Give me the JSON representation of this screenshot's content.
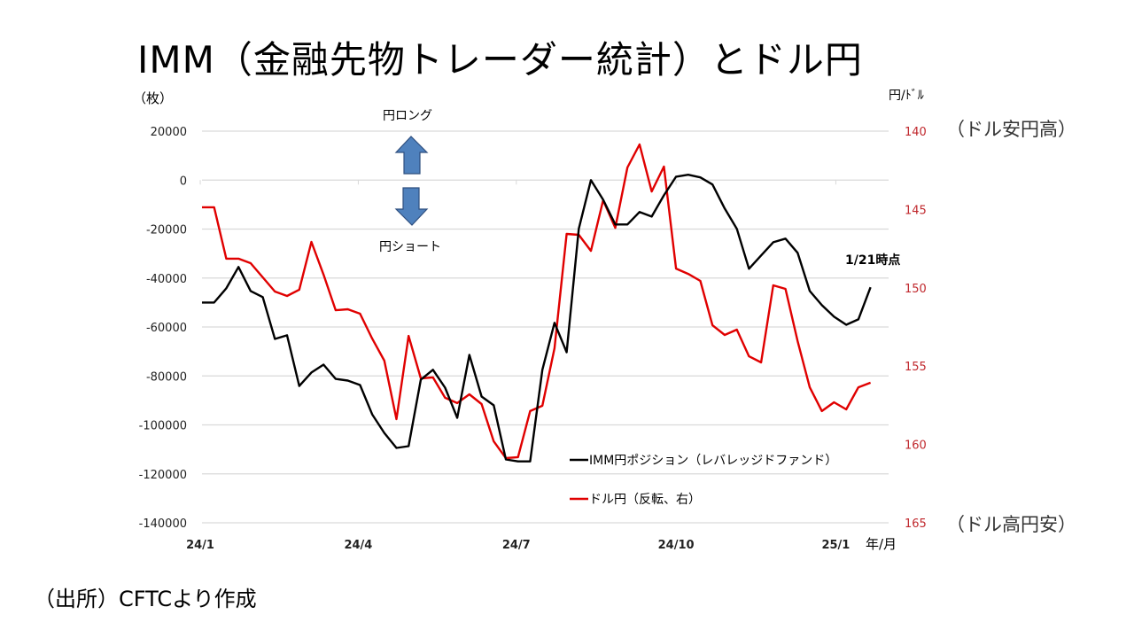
{
  "title": "IMM（金融先物トレーダー統計）とドル円",
  "source": "（出所）CFTCより作成",
  "chart_data": {
    "type": "line",
    "title": "IMM（金融先物トレーダー統計）とドル円",
    "y_left_label": "（枚）",
    "y_right_label": "円/ﾄﾞﾙ",
    "x_label": "年/月",
    "ylim_left": [
      -140000,
      20000
    ],
    "ylim_right": [
      165,
      140
    ],
    "right_axis_inverted": true,
    "grid": true,
    "legend_placement": "bottom-right",
    "y_left_ticks": [
      "20000",
      "0",
      "-20000",
      "-40000",
      "-60000",
      "-80000",
      "-100000",
      "-120000",
      "-140000"
    ],
    "y_right_ticks": [
      "140",
      "145",
      "150",
      "155",
      "160",
      "165"
    ],
    "x_ticks": [
      {
        "date": "2024-01-01",
        "label": "24/1"
      },
      {
        "date": "2024-04-01",
        "label": "24/4"
      },
      {
        "date": "2024-07-01",
        "label": "24/7"
      },
      {
        "date": "2024-10-01",
        "label": "24/10"
      },
      {
        "date": "2025-01-01",
        "label": "25/1"
      }
    ],
    "annotations": {
      "yen_long": "円ロング",
      "yen_short": "円ショート",
      "dollar_weak": "（ドル安円高）",
      "dollar_strong": "（ドル高円安）",
      "as_of": "1/21時点"
    },
    "colors": {
      "imm": "#000000",
      "usdjpy": "#e00000",
      "arrow": "#4f81bd",
      "right_tick": "#c0282d",
      "grid": "#d9d9d9"
    },
    "x": [
      "2024-01-02",
      "2024-01-09",
      "2024-01-16",
      "2024-01-23",
      "2024-01-30",
      "2024-02-06",
      "2024-02-13",
      "2024-02-20",
      "2024-02-27",
      "2024-03-05",
      "2024-03-12",
      "2024-03-19",
      "2024-03-26",
      "2024-04-02",
      "2024-04-09",
      "2024-04-16",
      "2024-04-23",
      "2024-04-30",
      "2024-05-07",
      "2024-05-14",
      "2024-05-21",
      "2024-05-28",
      "2024-06-04",
      "2024-06-11",
      "2024-06-18",
      "2024-06-25",
      "2024-07-02",
      "2024-07-09",
      "2024-07-16",
      "2024-07-23",
      "2024-07-30",
      "2024-08-06",
      "2024-08-13",
      "2024-08-20",
      "2024-08-27",
      "2024-09-03",
      "2024-09-10",
      "2024-09-17",
      "2024-09-24",
      "2024-10-01",
      "2024-10-08",
      "2024-10-15",
      "2024-10-22",
      "2024-10-29",
      "2024-11-05",
      "2024-11-12",
      "2024-11-19",
      "2024-11-26",
      "2024-12-03",
      "2024-12-10",
      "2024-12-17",
      "2024-12-24",
      "2024-12-31",
      "2025-01-07",
      "2025-01-14",
      "2025-01-21"
    ],
    "series": [
      {
        "name": "IMM円ポジション（レバレッジドファンド）",
        "axis": "left",
        "values": [
          -50000,
          -50000,
          -44200,
          -35500,
          -45300,
          -47800,
          -64900,
          -63400,
          -84100,
          -78600,
          -75400,
          -81200,
          -81900,
          -83700,
          -95700,
          -103300,
          -109400,
          -108700,
          -81500,
          -77500,
          -84800,
          -97100,
          -71400,
          -88400,
          -92000,
          -114100,
          -114900,
          -114900,
          -77500,
          -58300,
          -70300,
          -19900,
          0,
          -8000,
          -18100,
          -18100,
          -13000,
          -14900,
          -6200,
          1400,
          2200,
          1100,
          -1800,
          -11600,
          -19900,
          -36200,
          -30800,
          -25400,
          -23900,
          -29700,
          -45300,
          -51100,
          -55800,
          -59100,
          -56900,
          -43800
        ]
      },
      {
        "name": "ドル円（反転、右）",
        "axis": "right",
        "values": [
          144.86,
          144.86,
          148.14,
          148.14,
          148.43,
          149.33,
          150.24,
          150.52,
          150.12,
          147.07,
          149.16,
          151.43,
          151.37,
          151.65,
          153.24,
          154.65,
          158.38,
          153.07,
          155.78,
          155.72,
          157.02,
          157.36,
          156.8,
          157.42,
          159.8,
          160.87,
          160.81,
          157.87,
          157.53,
          153.86,
          146.56,
          146.62,
          147.64,
          144.41,
          146.17,
          142.32,
          140.85,
          143.85,
          142.26,
          148.77,
          149.11,
          149.56,
          152.39,
          153.01,
          152.67,
          154.37,
          154.76,
          149.84,
          150.07,
          153.4,
          156.35,
          157.87,
          157.31,
          157.76,
          156.35,
          156.06
        ]
      }
    ]
  }
}
